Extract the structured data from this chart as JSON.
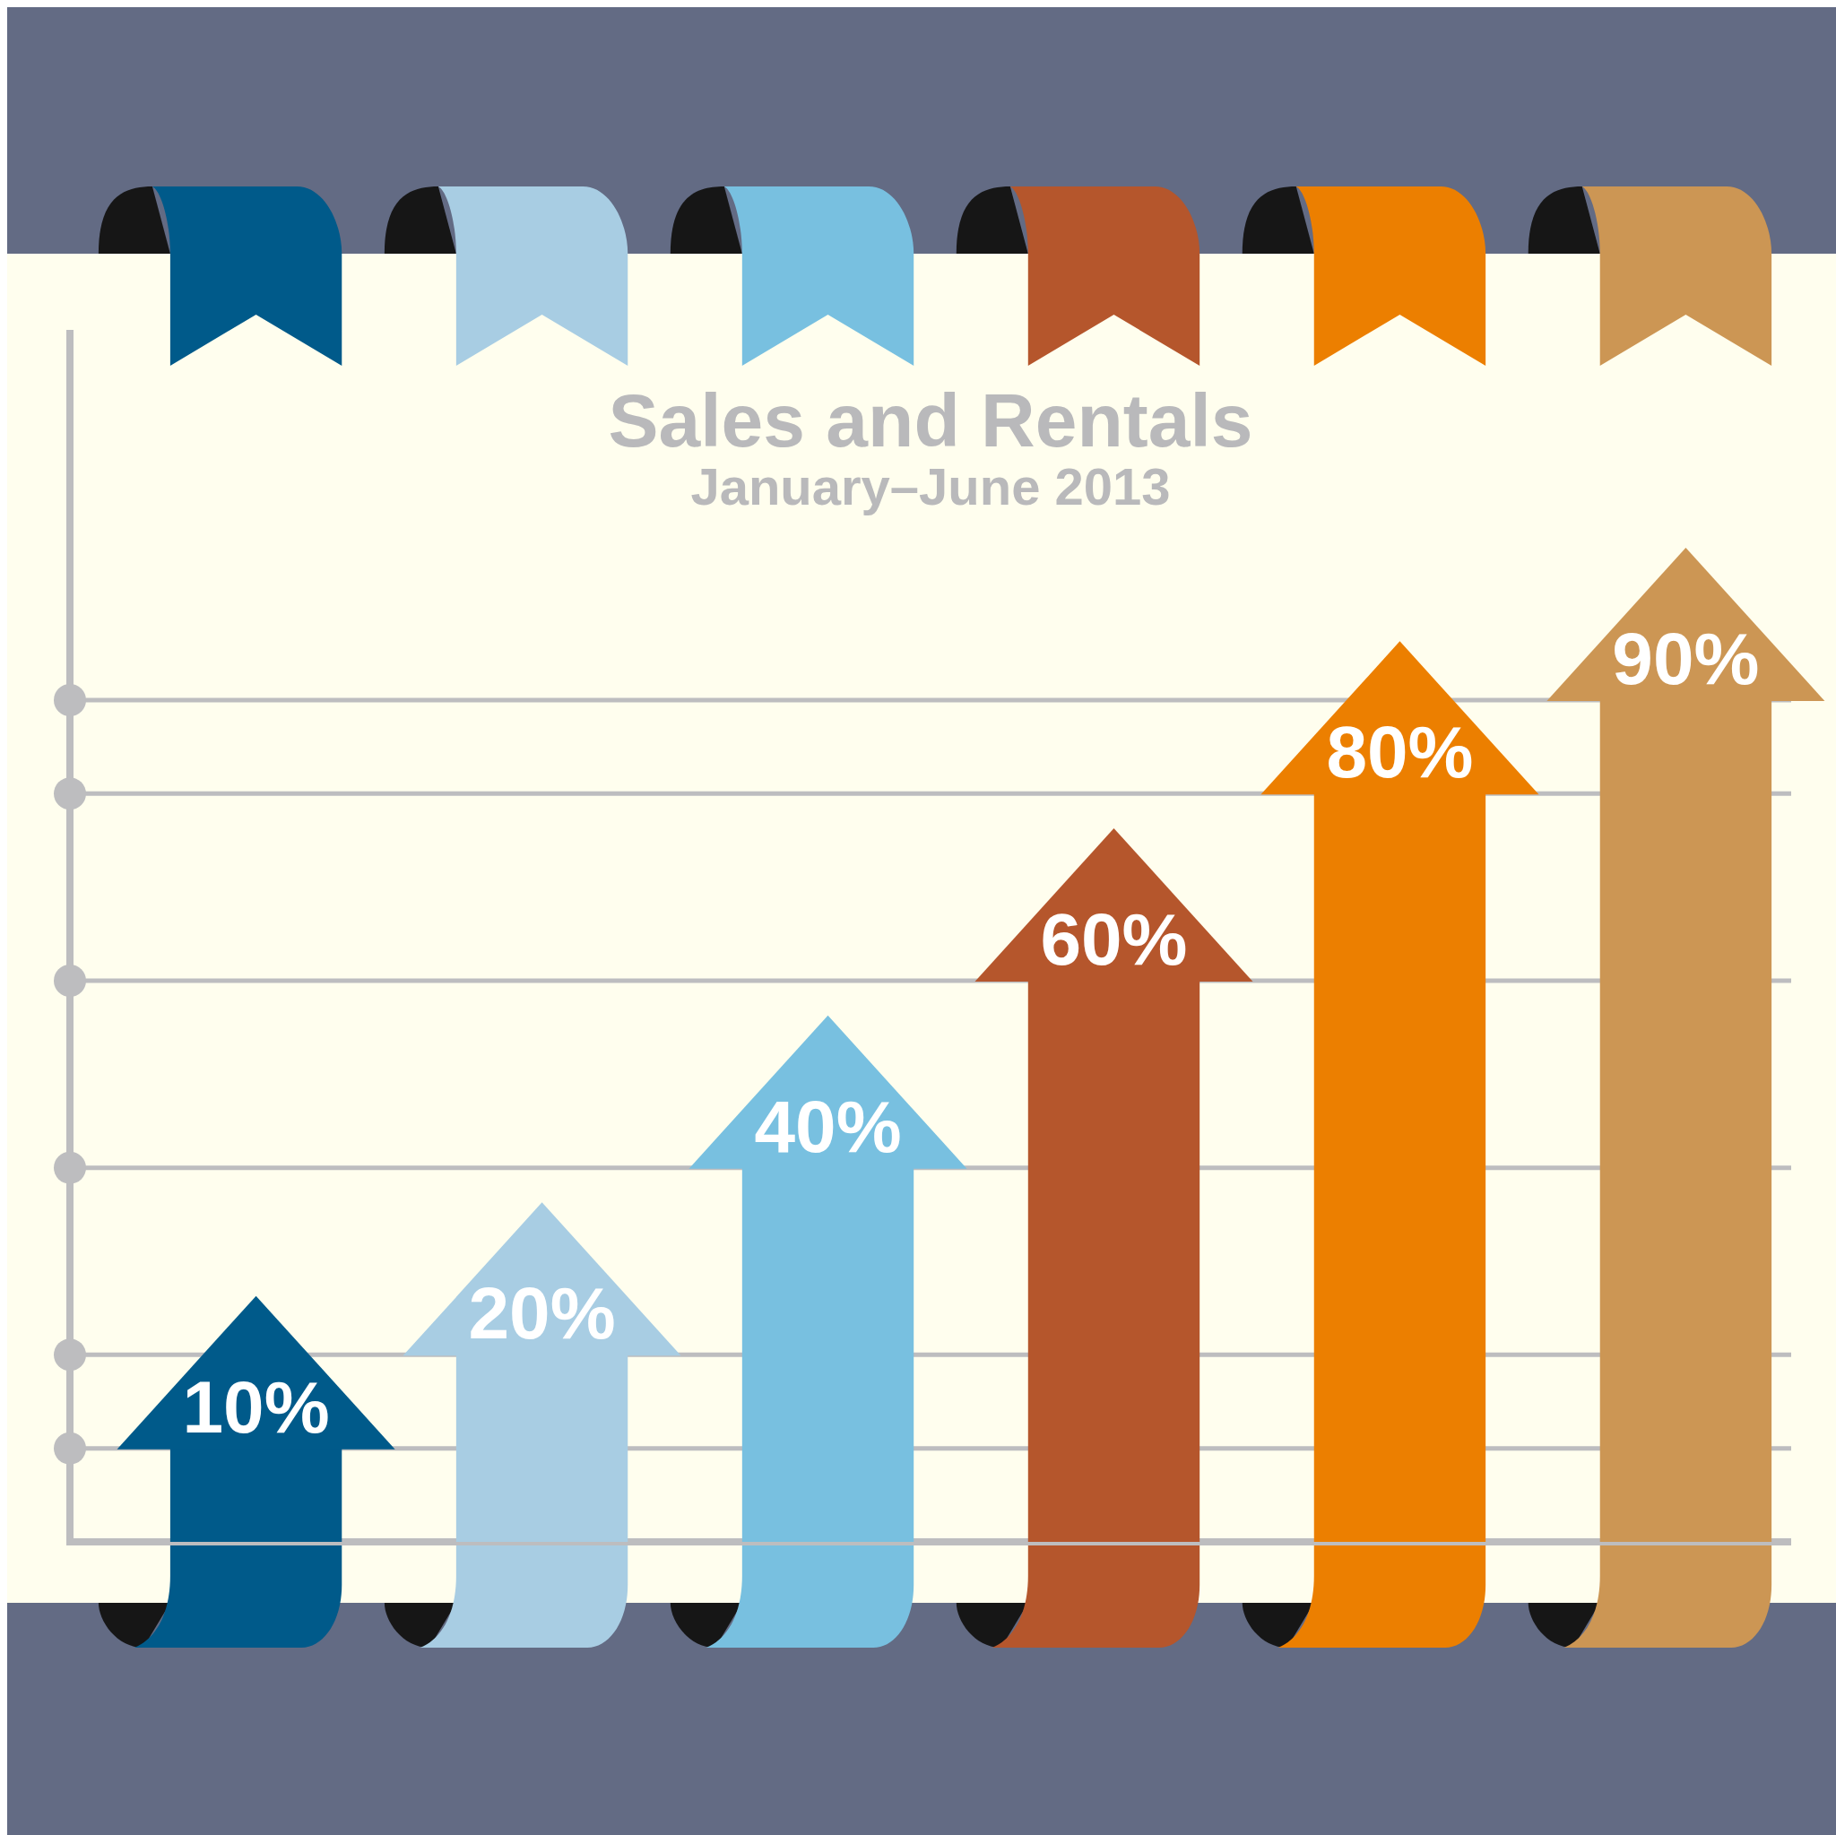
{
  "chart_data": {
    "type": "bar",
    "title": "Sales and Rentals",
    "subtitle": "January–June 2013",
    "categories": [
      null,
      null,
      null,
      null,
      null,
      null
    ],
    "values": [
      10,
      20,
      40,
      60,
      80,
      90
    ],
    "colors": [
      "#005a8a",
      "#a8cde3",
      "#78c0e0",
      "#b5562c",
      "#ec7f00",
      "#cc9654"
    ],
    "value_labels": [
      "10%",
      "20%",
      "40%",
      "60%",
      "80%",
      "90%"
    ],
    "grid": "y"
  }
}
